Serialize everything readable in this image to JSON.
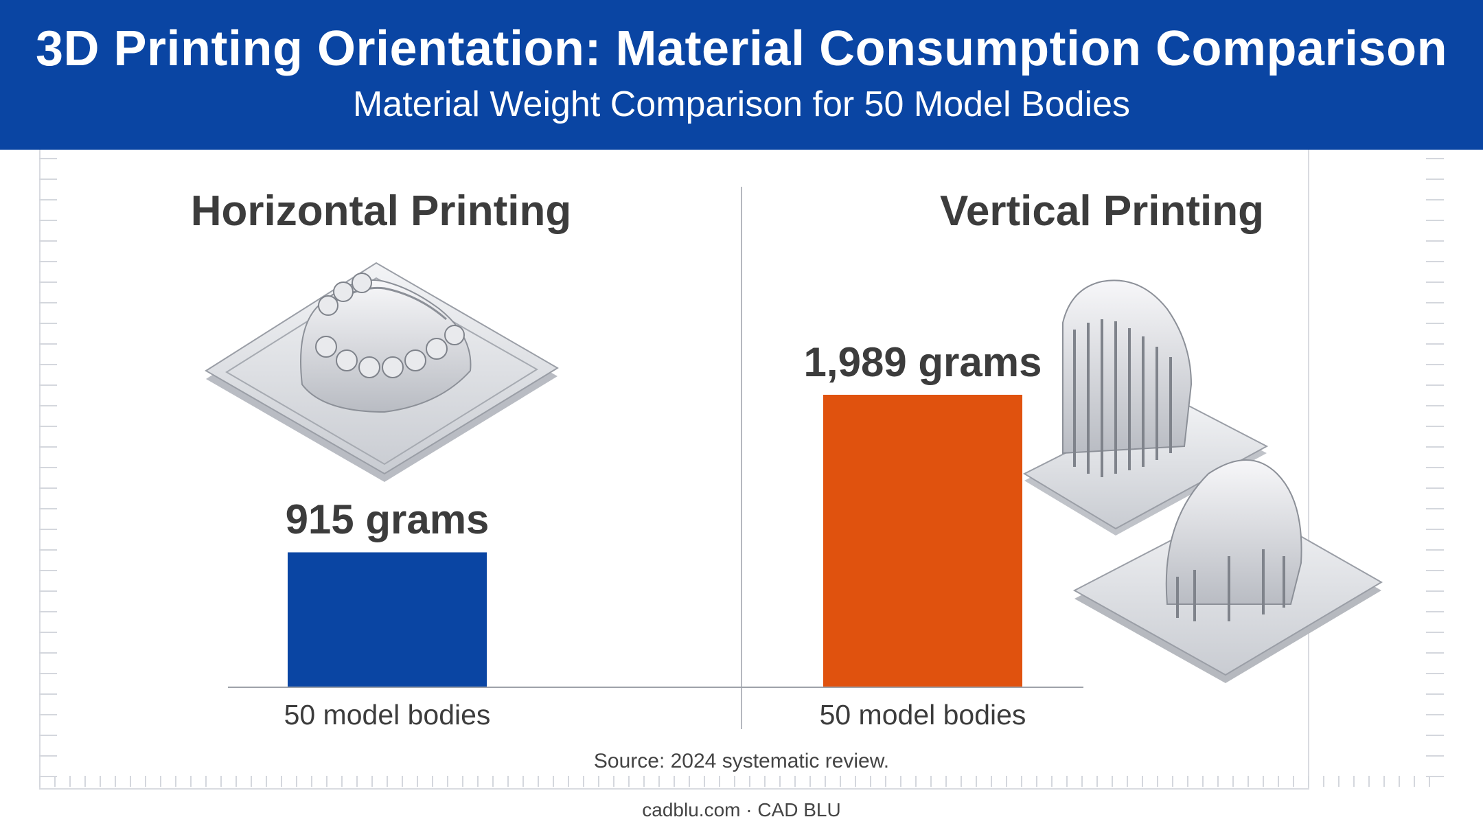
{
  "header": {
    "title": "3D Printing Orientation: Material Consumption Comparison",
    "subtitle": "Material Weight Comparison for 50 Model Bodies"
  },
  "source": "Source: 2024 systematic review.",
  "footer": "cadblu.com · CAD BLU",
  "colors": {
    "header_bg": "#0a45a3",
    "horizontal_bar": "#0a45a3",
    "vertical_bar": "#e0520e"
  },
  "chart_data": {
    "type": "bar",
    "title": "3D Printing Orientation: Material Consumption Comparison",
    "subtitle": "Material Weight Comparison for 50 Model Bodies",
    "groups": [
      "Horizontal Printing",
      "Vertical Printing"
    ],
    "categories": [
      "50 model bodies",
      "50 model bodies"
    ],
    "values": [
      915,
      1989
    ],
    "value_labels": [
      "915 grams",
      "1,989 grams"
    ],
    "unit": "grams",
    "colors": [
      "#0a45a3",
      "#e0520e"
    ],
    "grid": false,
    "legend": "none",
    "illustrations": [
      "dental-model-horizontal-print-icon",
      "dental-model-vertical-print-icon"
    ]
  }
}
